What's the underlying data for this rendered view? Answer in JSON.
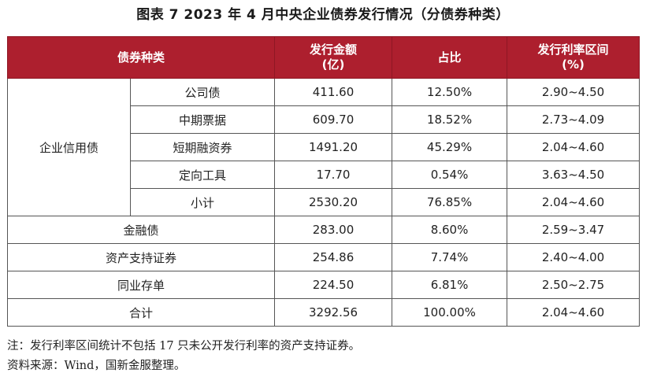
{
  "title": "图表 7  2023 年 4 月中央企业债券发行情况（分债券种类）",
  "header": {
    "type": "债券种类",
    "amount": "发行金额\n(亿)",
    "amount_l1": "发行金额",
    "amount_l2": "(亿)",
    "share": "占比",
    "rate_l1": "发行利率区间",
    "rate_l2": "(%)"
  },
  "group": {
    "label": "企业信用债"
  },
  "rows": [
    {
      "type": "公司债",
      "amount": "411.60",
      "share": "12.50%",
      "rate": "2.90~4.50"
    },
    {
      "type": "中期票据",
      "amount": "609.70",
      "share": "18.52%",
      "rate": "2.73~4.09"
    },
    {
      "type": "短期融资券",
      "amount": "1491.20",
      "share": "45.29%",
      "rate": "2.04~4.60"
    },
    {
      "type": "定向工具",
      "amount": "17.70",
      "share": "0.54%",
      "rate": "3.63~4.50"
    },
    {
      "type": "小计",
      "amount": "2530.20",
      "share": "76.85%",
      "rate": "2.04~4.60"
    },
    {
      "type": "金融债",
      "amount": "283.00",
      "share": "8.60%",
      "rate": "2.59~3.47"
    },
    {
      "type": "资产支持证券",
      "amount": "254.86",
      "share": "7.74%",
      "rate": "2.40~4.00"
    },
    {
      "type": "同业存单",
      "amount": "224.50",
      "share": "6.81%",
      "rate": "2.50~2.75"
    },
    {
      "type": "合计",
      "amount": "3292.56",
      "share": "100.00%",
      "rate": "2.04~4.60"
    }
  ],
  "notes": {
    "note": "注：发行利率区间统计不包括 17 只未公开发行利率的资产支持证券。",
    "source": "资料来源：Wind，国新金服整理。"
  },
  "colors": {
    "header_bg": "#ad1f2e",
    "header_text": "#ffffff",
    "border": "#555555"
  }
}
